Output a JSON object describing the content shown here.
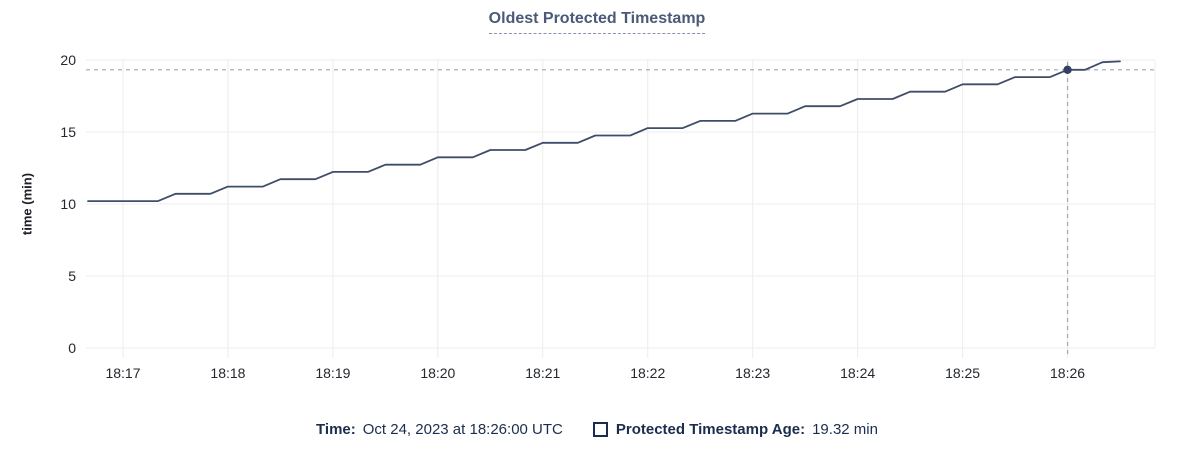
{
  "chart_data": {
    "type": "line",
    "title": "Oldest Protected Timestamp",
    "xlabel": "",
    "ylabel": "time (min)",
    "ylim": [
      0,
      20
    ],
    "y_ticks": [
      0,
      5,
      10,
      15,
      20
    ],
    "x_tick_labels": [
      "18:17",
      "18:18",
      "18:19",
      "18:20",
      "18:21",
      "18:22",
      "18:23",
      "18:24",
      "18:25",
      "18:26"
    ],
    "x_domain": [
      "18:16:40",
      "18:26:50"
    ],
    "grid": true,
    "legend_position": "bottom",
    "series": [
      {
        "name": "Protected Timestamp Age",
        "unit": "min",
        "points": [
          [
            "18:16:40",
            10.2
          ],
          [
            "18:16:50",
            10.2
          ],
          [
            "18:17:00",
            10.2
          ],
          [
            "18:17:10",
            10.2
          ],
          [
            "18:17:20",
            10.2
          ],
          [
            "18:17:30",
            10.71
          ],
          [
            "18:17:40",
            10.71
          ],
          [
            "18:17:50",
            10.71
          ],
          [
            "18:18:00",
            11.21
          ],
          [
            "18:18:10",
            11.21
          ],
          [
            "18:18:20",
            11.21
          ],
          [
            "18:18:30",
            11.72
          ],
          [
            "18:18:40",
            11.72
          ],
          [
            "18:18:50",
            11.72
          ],
          [
            "18:19:00",
            12.23
          ],
          [
            "18:19:10",
            12.23
          ],
          [
            "18:19:20",
            12.23
          ],
          [
            "18:19:30",
            12.73
          ],
          [
            "18:19:40",
            12.73
          ],
          [
            "18:19:50",
            12.73
          ],
          [
            "18:20:00",
            13.24
          ],
          [
            "18:20:10",
            13.24
          ],
          [
            "18:20:20",
            13.24
          ],
          [
            "18:20:30",
            13.75
          ],
          [
            "18:20:40",
            13.75
          ],
          [
            "18:20:50",
            13.75
          ],
          [
            "18:21:00",
            14.25
          ],
          [
            "18:21:10",
            14.25
          ],
          [
            "18:21:20",
            14.25
          ],
          [
            "18:21:30",
            14.76
          ],
          [
            "18:21:40",
            14.76
          ],
          [
            "18:21:50",
            14.76
          ],
          [
            "18:22:00",
            15.27
          ],
          [
            "18:22:10",
            15.27
          ],
          [
            "18:22:20",
            15.27
          ],
          [
            "18:22:30",
            15.77
          ],
          [
            "18:22:40",
            15.77
          ],
          [
            "18:22:50",
            15.77
          ],
          [
            "18:23:00",
            16.28
          ],
          [
            "18:23:10",
            16.28
          ],
          [
            "18:23:20",
            16.28
          ],
          [
            "18:23:30",
            16.79
          ],
          [
            "18:23:40",
            16.79
          ],
          [
            "18:23:50",
            16.79
          ],
          [
            "18:24:00",
            17.29
          ],
          [
            "18:24:10",
            17.29
          ],
          [
            "18:24:20",
            17.29
          ],
          [
            "18:24:30",
            17.8
          ],
          [
            "18:24:40",
            17.8
          ],
          [
            "18:24:50",
            17.8
          ],
          [
            "18:25:00",
            18.31
          ],
          [
            "18:25:10",
            18.31
          ],
          [
            "18:25:20",
            18.31
          ],
          [
            "18:25:30",
            18.81
          ],
          [
            "18:25:40",
            18.81
          ],
          [
            "18:25:50",
            18.81
          ],
          [
            "18:26:00",
            19.32
          ],
          [
            "18:26:10",
            19.32
          ],
          [
            "18:26:20",
            19.85
          ],
          [
            "18:26:30",
            19.9
          ]
        ]
      }
    ],
    "hover": {
      "time": "18:26:00",
      "value": 19.32
    }
  },
  "legend": {
    "time_label": "Time:",
    "time_value": "Oct 24, 2023 at 18:26:00 UTC",
    "series_label": "Protected Timestamp Age:",
    "series_value": "19.32 min"
  },
  "colors": {
    "title": "#4a5a78",
    "title_underline": "#8593ab",
    "series_line": "#3e4d68",
    "hover_crosshair": "#98abb9",
    "hover_dot": "#31415f",
    "gridline": "#ececec",
    "axis_text": "#23272e",
    "legend_text": "#1b2d4e"
  }
}
